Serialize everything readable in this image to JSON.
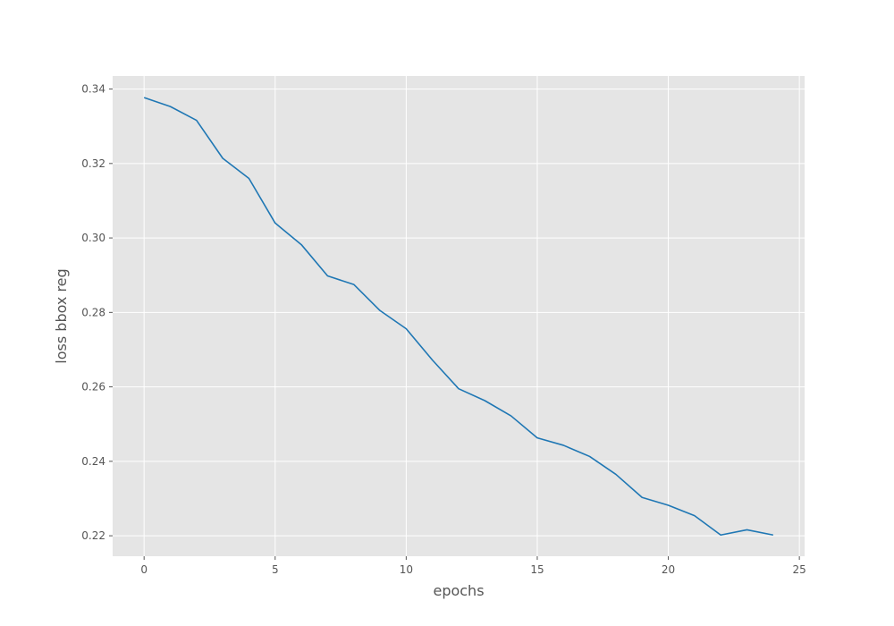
{
  "chart_data": {
    "type": "line",
    "title": "",
    "xlabel": "epochs",
    "ylabel": "loss bbox reg",
    "xlim": [
      -1.2,
      25.2
    ],
    "ylim": [
      0.2145,
      0.3435
    ],
    "xticks": [
      0,
      5,
      10,
      15,
      20,
      25
    ],
    "yticks": [
      0.22,
      0.24,
      0.26,
      0.28,
      0.3,
      0.32,
      0.34
    ],
    "xtick_labels": [
      "0",
      "5",
      "10",
      "15",
      "20",
      "25"
    ],
    "ytick_labels": [
      "0.22",
      "0.24",
      "0.26",
      "0.28",
      "0.30",
      "0.32",
      "0.34"
    ],
    "grid": true,
    "style": "ggplot",
    "colors": {
      "background": "#E5E5E5",
      "grid": "#FFFFFF",
      "line": "#1F77B4",
      "text": "#555555"
    },
    "series": [
      {
        "x": [
          0,
          1,
          2,
          3,
          4,
          5,
          6,
          7,
          8,
          9,
          10,
          11,
          12,
          13,
          14,
          15,
          16,
          17,
          18,
          19,
          20,
          21,
          22,
          23,
          24
        ],
        "values": [
          0.3377,
          0.3353,
          0.3316,
          0.3214,
          0.316,
          0.304,
          0.2982,
          0.2898,
          0.2875,
          0.2805,
          0.2756,
          0.2672,
          0.2595,
          0.2563,
          0.2522,
          0.2463,
          0.2443,
          0.2413,
          0.2365,
          0.2303,
          0.2282,
          0.2254,
          0.2202,
          0.2216,
          0.2202
        ]
      }
    ]
  }
}
